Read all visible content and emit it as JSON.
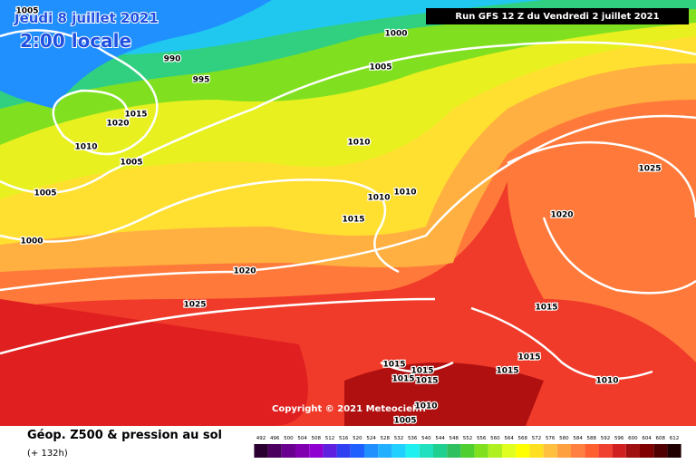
{
  "header": {
    "date": "Jeudi 8 juillet 2021",
    "time": "2:00 locale",
    "run": "Run GFS 12 Z du Vendredi 2 juillet 2021"
  },
  "copyright": "Copyright © 2021 Meteociel.fr",
  "isobar_labels": [
    "1005",
    "990",
    "995",
    "1000",
    "1005",
    "1015",
    "1020",
    "1010",
    "1005",
    "1005",
    "1000",
    "1010",
    "1010",
    "1010",
    "1015",
    "1020",
    "1025",
    "1025",
    "1020",
    "1015",
    "1015",
    "1015",
    "1015",
    "1015",
    "1015",
    "1015",
    "1010",
    "1005",
    "1010"
  ],
  "legend": {
    "title": "Géop. Z500 & pression au sol",
    "subtitle": "(+ 132h)",
    "values": [
      492,
      496,
      500,
      504,
      508,
      512,
      516,
      520,
      524,
      528,
      532,
      536,
      540,
      544,
      548,
      552,
      556,
      560,
      564,
      568,
      572,
      576,
      580,
      584,
      588,
      592,
      596,
      600,
      604,
      608,
      612
    ],
    "colors": [
      "#2a0030",
      "#4b0060",
      "#6a0090",
      "#8000b0",
      "#9000d0",
      "#6020e0",
      "#3040f0",
      "#2060ff",
      "#2090ff",
      "#20b0ff",
      "#20d0ff",
      "#20f0f0",
      "#20e0c0",
      "#20d090",
      "#30c060",
      "#50d030",
      "#80e020",
      "#b0f020",
      "#e0ff20",
      "#ffff00",
      "#ffe020",
      "#ffc040",
      "#ffa040",
      "#ff8040",
      "#ff6030",
      "#f04030",
      "#d02020",
      "#a01010",
      "#800000",
      "#500000",
      "#200000"
    ]
  }
}
